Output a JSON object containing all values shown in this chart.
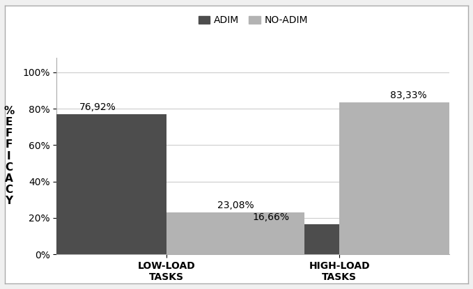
{
  "categories": [
    "LOW-LOAD\nTASKS",
    "HIGH-LOAD\nTASKS"
  ],
  "adim_values": [
    0.7692,
    0.1666
  ],
  "no_adim_values": [
    0.2308,
    0.8333
  ],
  "adim_labels": [
    "76,92%",
    "16,66%"
  ],
  "no_adim_labels": [
    "23,08%",
    "83,33%"
  ],
  "adim_color": "#4d4d4d",
  "no_adim_color": "#b3b3b3",
  "legend_labels": [
    "ADIM",
    "NO-ADIM"
  ],
  "ylabel_chars": [
    "%",
    "E",
    "F",
    "F",
    "I",
    "C",
    "A",
    "C",
    "Y"
  ],
  "yticks": [
    0.0,
    0.2,
    0.4,
    0.6,
    0.8,
    1.0
  ],
  "ytick_labels": [
    "0%",
    "20%",
    "40%",
    "60%",
    "80%",
    "100%"
  ],
  "ylim": [
    0,
    1.08
  ],
  "bar_width": 0.35,
  "group_centers": [
    0.25,
    0.75
  ],
  "background_color": "#ffffff",
  "outer_bg": "#f0f0f0",
  "grid_color": "#cccccc",
  "label_fontsize": 10,
  "tick_fontsize": 10,
  "legend_fontsize": 10,
  "ylabel_fontsize": 11,
  "border_color": "#aaaaaa"
}
